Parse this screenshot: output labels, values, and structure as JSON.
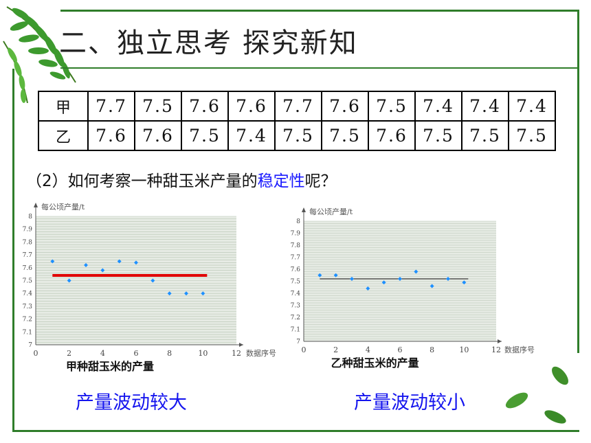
{
  "slide": {
    "title": "二、独立思考 探究新知",
    "question_prefix": "（2）如何考察一种甜玉米产量的",
    "question_emphasis": "稳定性",
    "question_suffix": "呢？",
    "caption_left": "产量波动较大",
    "caption_right": "产量波动较小"
  },
  "table": {
    "rows": [
      {
        "label": "甲",
        "values": [
          "7.7",
          "7.5",
          "7.6",
          "7.6",
          "7.7",
          "7.6",
          "7.5",
          "7.4",
          "7.4",
          "7.4"
        ]
      },
      {
        "label": "乙",
        "values": [
          "7.6",
          "7.6",
          "7.5",
          "7.4",
          "7.5",
          "7.5",
          "7.6",
          "7.5",
          "7.5",
          "7.5"
        ]
      }
    ]
  },
  "colors": {
    "frame": "#2f7d2a",
    "point": "#1e90ff",
    "mean_left": "#e00000",
    "mean_right": "#333333",
    "plot_bg": "#e6ebe4",
    "caption": "#1515ee"
  },
  "chart_data": [
    {
      "type": "scatter",
      "title": "甲种甜玉米的产量",
      "xlabel": "数据序号",
      "ylabel": "每公顷产量/t",
      "xlim": [
        0,
        12
      ],
      "ylim": [
        7,
        8
      ],
      "xticks": [
        "0",
        "2",
        "4",
        "6",
        "8",
        "10",
        "12"
      ],
      "yticks": [
        "7",
        "7.1",
        "7.2",
        "7.3",
        "7.4",
        "7.5",
        "7.6",
        "7.7",
        "7.8",
        "7.9",
        "8"
      ],
      "grid": true,
      "x": [
        1,
        2,
        3,
        4,
        5,
        6,
        7,
        8,
        9,
        10
      ],
      "y": [
        7.65,
        7.5,
        7.62,
        7.58,
        7.65,
        7.64,
        7.5,
        7.4,
        7.4,
        7.4
      ],
      "mean_line": {
        "y": 7.54,
        "x_range": [
          1,
          10
        ]
      }
    },
    {
      "type": "scatter",
      "title": "乙种甜玉米的产量",
      "xlabel": "数据序号",
      "ylabel": "每公顷产量/t",
      "xlim": [
        0,
        12
      ],
      "ylim": [
        7,
        8
      ],
      "xticks": [
        "0",
        "2",
        "4",
        "6",
        "8",
        "10",
        "12"
      ],
      "yticks": [
        "7",
        "7.1",
        "7.2",
        "7.3",
        "7.4",
        "7.5",
        "7.6",
        "7.7",
        "7.8",
        "7.9",
        "8"
      ],
      "grid": true,
      "x": [
        1,
        2,
        3,
        4,
        5,
        6,
        7,
        8,
        9,
        10
      ],
      "y": [
        7.55,
        7.55,
        7.52,
        7.44,
        7.49,
        7.52,
        7.58,
        7.46,
        7.52,
        7.49
      ],
      "mean_line": {
        "y": 7.52,
        "x_range": [
          1,
          10
        ]
      }
    }
  ]
}
